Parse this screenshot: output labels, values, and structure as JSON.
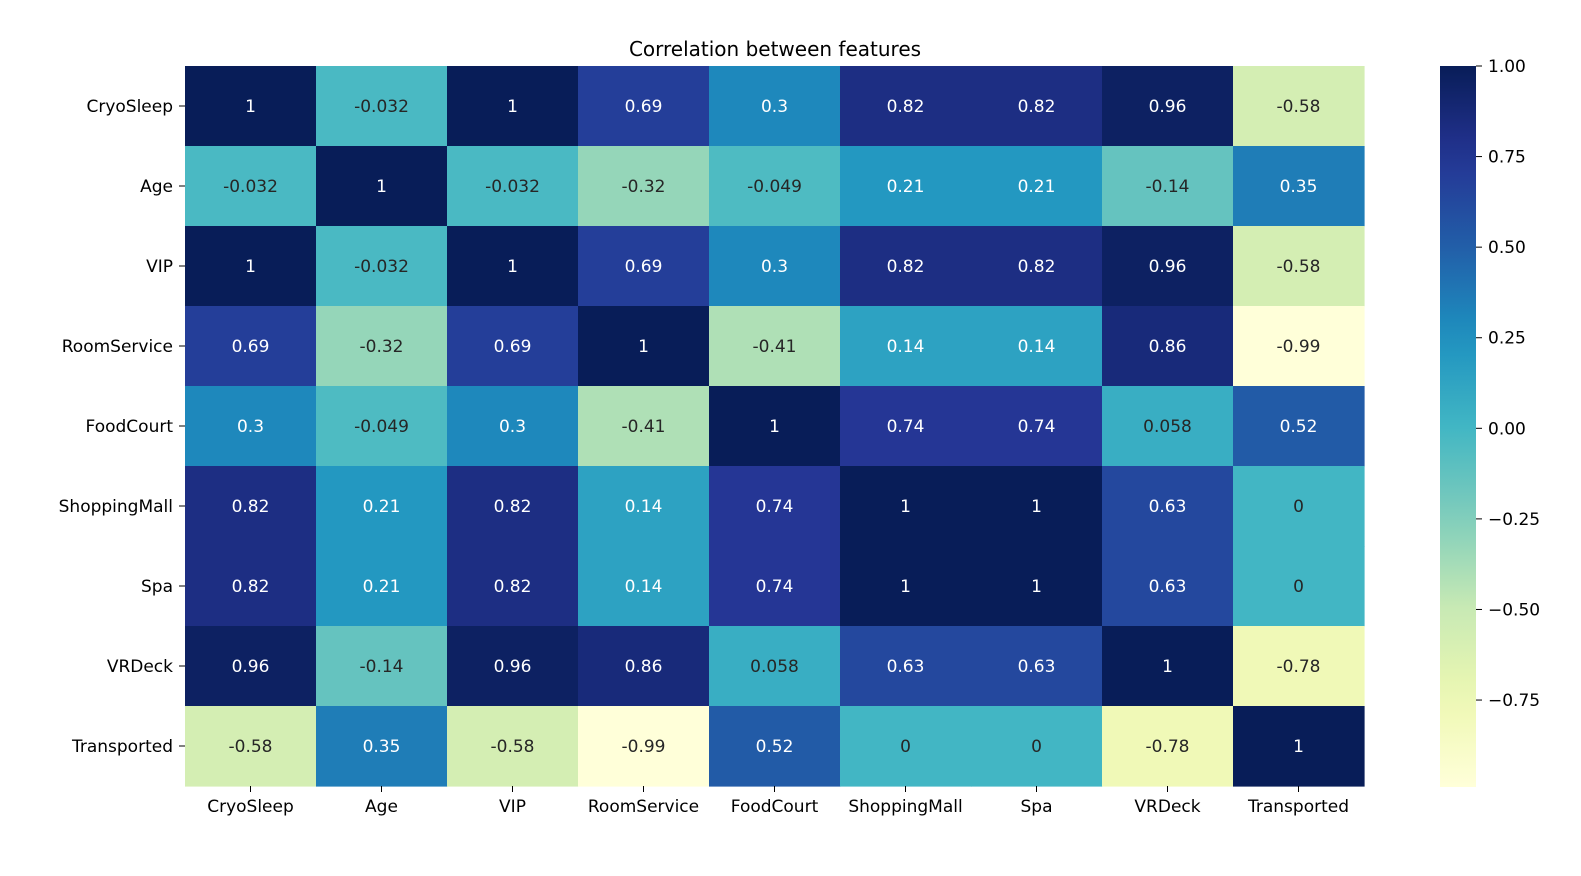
{
  "chart_data": {
    "type": "heatmap",
    "title": "Correlation between features",
    "rows": [
      "CryoSleep",
      "Age",
      "VIP",
      "RoomService",
      "FoodCourt",
      "ShoppingMall",
      "Spa",
      "VRDeck",
      "Transported"
    ],
    "columns": [
      "CryoSleep",
      "Age",
      "VIP",
      "RoomService",
      "FoodCourt",
      "ShoppingMall",
      "Spa",
      "VRDeck",
      "Transported"
    ],
    "values": [
      [
        1,
        -0.032,
        1,
        0.69,
        0.3,
        0.82,
        0.82,
        0.96,
        -0.58
      ],
      [
        -0.032,
        1,
        -0.032,
        -0.32,
        -0.049,
        0.21,
        0.21,
        -0.14,
        0.35
      ],
      [
        1,
        -0.032,
        1,
        0.69,
        0.3,
        0.82,
        0.82,
        0.96,
        -0.58
      ],
      [
        0.69,
        -0.32,
        0.69,
        1,
        -0.41,
        0.14,
        0.14,
        0.86,
        -0.99
      ],
      [
        0.3,
        -0.049,
        0.3,
        -0.41,
        1,
        0.74,
        0.74,
        0.058,
        0.52
      ],
      [
        0.82,
        0.21,
        0.82,
        0.14,
        0.74,
        1,
        1,
        0.63,
        0
      ],
      [
        0.82,
        0.21,
        0.82,
        0.14,
        0.74,
        1,
        1,
        0.63,
        0
      ],
      [
        0.96,
        -0.14,
        0.96,
        0.86,
        0.058,
        0.63,
        0.63,
        1,
        -0.78
      ],
      [
        -0.58,
        0.35,
        -0.58,
        -0.99,
        0.52,
        0,
        0,
        -0.78,
        1
      ]
    ],
    "colormap": "YlGnBu",
    "colorbar": {
      "range": [
        -0.99,
        1.0
      ],
      "ticks": [
        1.0,
        0.75,
        0.5,
        0.25,
        0.0,
        -0.25,
        -0.5,
        -0.75
      ],
      "tick_labels": [
        "1.00",
        "0.75",
        "0.50",
        "0.25",
        "0.00",
        "−0.25",
        "−0.50",
        "−0.75"
      ]
    }
  }
}
